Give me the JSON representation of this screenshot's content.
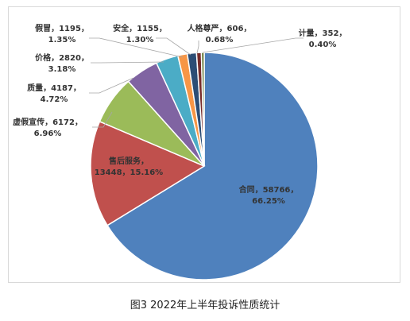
{
  "caption": "图3  2022年上半年投诉性质统计",
  "chart_data": {
    "type": "pie",
    "title": "",
    "slices": [
      {
        "name": "合同",
        "count": 58766,
        "count_text": "58766",
        "pct": 66.25,
        "pct_text": "66.25%",
        "color": "#4f81bd"
      },
      {
        "name": "售后服务",
        "count": 13448,
        "count_text": "13448",
        "pct": 15.16,
        "pct_text": "15.16%",
        "color": "#c0504d"
      },
      {
        "name": "虚假宣传",
        "count": 6172,
        "count_text": "6172",
        "pct": 6.96,
        "pct_text": "6.96%",
        "color": "#9bbb59"
      },
      {
        "name": "质量",
        "count": 4187,
        "count_text": "4187",
        "pct": 4.72,
        "pct_text": "4.72%",
        "color": "#8064a2"
      },
      {
        "name": "价格",
        "count": 2820,
        "count_text": "2820",
        "pct": 3.18,
        "pct_text": "3.18%",
        "color": "#4bacc6"
      },
      {
        "name": "假冒",
        "count": 1195,
        "count_text": "1195",
        "pct": 1.35,
        "pct_text": "1.35%",
        "color": "#f79646"
      },
      {
        "name": "安全",
        "count": 1155,
        "count_text": "1155",
        "pct": 1.3,
        "pct_text": "1.30%",
        "color": "#2c4d75"
      },
      {
        "name": "人格尊严",
        "count": 606,
        "count_text": "606",
        "pct": 0.68,
        "pct_text": "0.68%",
        "color": "#772c2a"
      },
      {
        "name": "计量",
        "count": 352,
        "count_text": "352",
        "pct": 0.4,
        "pct_text": "0.40%",
        "color": "#5f7530"
      }
    ]
  }
}
